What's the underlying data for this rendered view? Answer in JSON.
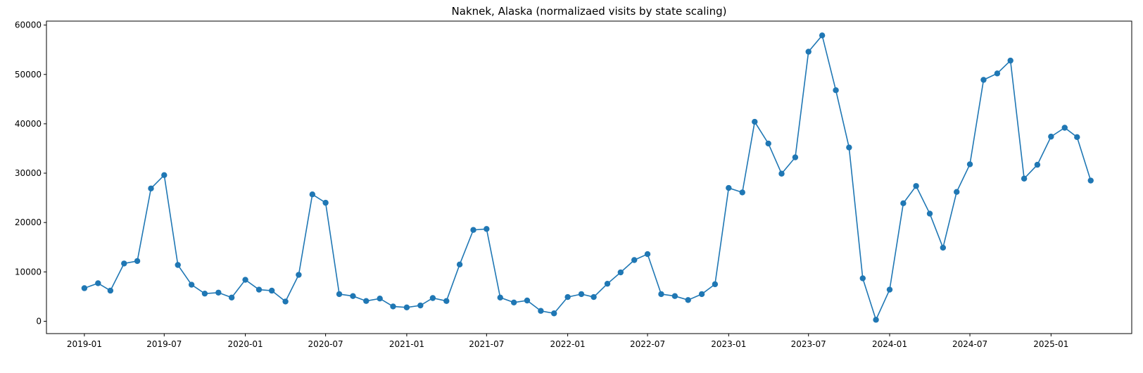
{
  "chart_data": {
    "type": "line",
    "title": "Naknek, Alaska (normalizaed visits by state scaling)",
    "xlabel": "",
    "ylabel": "",
    "x_axis": "date",
    "ylim": [
      -2500,
      60800
    ],
    "xlim": [
      "2018-10-07",
      "2025-07-03"
    ],
    "grid": false,
    "line_color": "#1f77b4",
    "marker": "circle",
    "x_ticks": [
      "2019-01",
      "2019-07",
      "2020-01",
      "2020-07",
      "2021-01",
      "2021-07",
      "2022-01",
      "2022-07",
      "2023-01",
      "2023-07",
      "2024-01",
      "2024-07",
      "2025-01"
    ],
    "y_ticks": [
      0,
      10000,
      20000,
      30000,
      40000,
      50000,
      60000
    ],
    "series": [
      {
        "x": [
          "2019-01",
          "2019-02",
          "2019-03",
          "2019-04",
          "2019-05",
          "2019-06",
          "2019-07",
          "2019-08",
          "2019-09",
          "2019-10",
          "2019-11",
          "2019-12",
          "2020-01",
          "2020-02",
          "2020-03",
          "2020-04",
          "2020-05",
          "2020-06",
          "2020-07",
          "2020-08",
          "2020-09",
          "2020-10",
          "2020-11",
          "2020-12",
          "2021-01",
          "2021-02",
          "2021-03",
          "2021-04",
          "2021-05",
          "2021-06",
          "2021-07",
          "2021-08",
          "2021-09",
          "2021-10",
          "2021-11",
          "2021-12",
          "2022-01",
          "2022-02",
          "2022-03",
          "2022-04",
          "2022-05",
          "2022-06",
          "2022-07",
          "2022-08",
          "2022-09",
          "2022-10",
          "2022-11",
          "2022-12",
          "2023-01",
          "2023-02",
          "2023-03",
          "2023-04",
          "2023-05",
          "2023-06",
          "2023-07",
          "2023-08",
          "2023-09",
          "2023-10",
          "2023-11",
          "2023-12",
          "2024-01",
          "2024-02",
          "2024-03",
          "2024-04",
          "2024-05",
          "2024-06",
          "2024-07",
          "2024-08",
          "2024-09",
          "2024-10",
          "2024-11",
          "2024-12",
          "2025-01",
          "2025-02",
          "2025-03",
          "2025-04"
        ],
        "values": [
          6700,
          7700,
          6200,
          11700,
          12200,
          26900,
          29600,
          11400,
          7400,
          5600,
          5800,
          4800,
          8400,
          6400,
          6200,
          4000,
          9400,
          25700,
          24000,
          5500,
          5100,
          4100,
          4600,
          3000,
          2800,
          3200,
          4700,
          4100,
          11500,
          18500,
          18700,
          4800,
          3800,
          4200,
          2100,
          1600,
          4900,
          5500,
          4900,
          7600,
          9900,
          12400,
          13600,
          5500,
          5100,
          4300,
          5500,
          7500,
          27000,
          26100,
          40400,
          36000,
          29900,
          33200,
          54600,
          57900,
          46800,
          35200,
          8700,
          300,
          6400,
          23900,
          27400,
          21800,
          14900,
          26200,
          31800,
          48900,
          50200,
          52800,
          28900,
          31700,
          37400,
          39200,
          37300,
          28500
        ]
      }
    ]
  }
}
